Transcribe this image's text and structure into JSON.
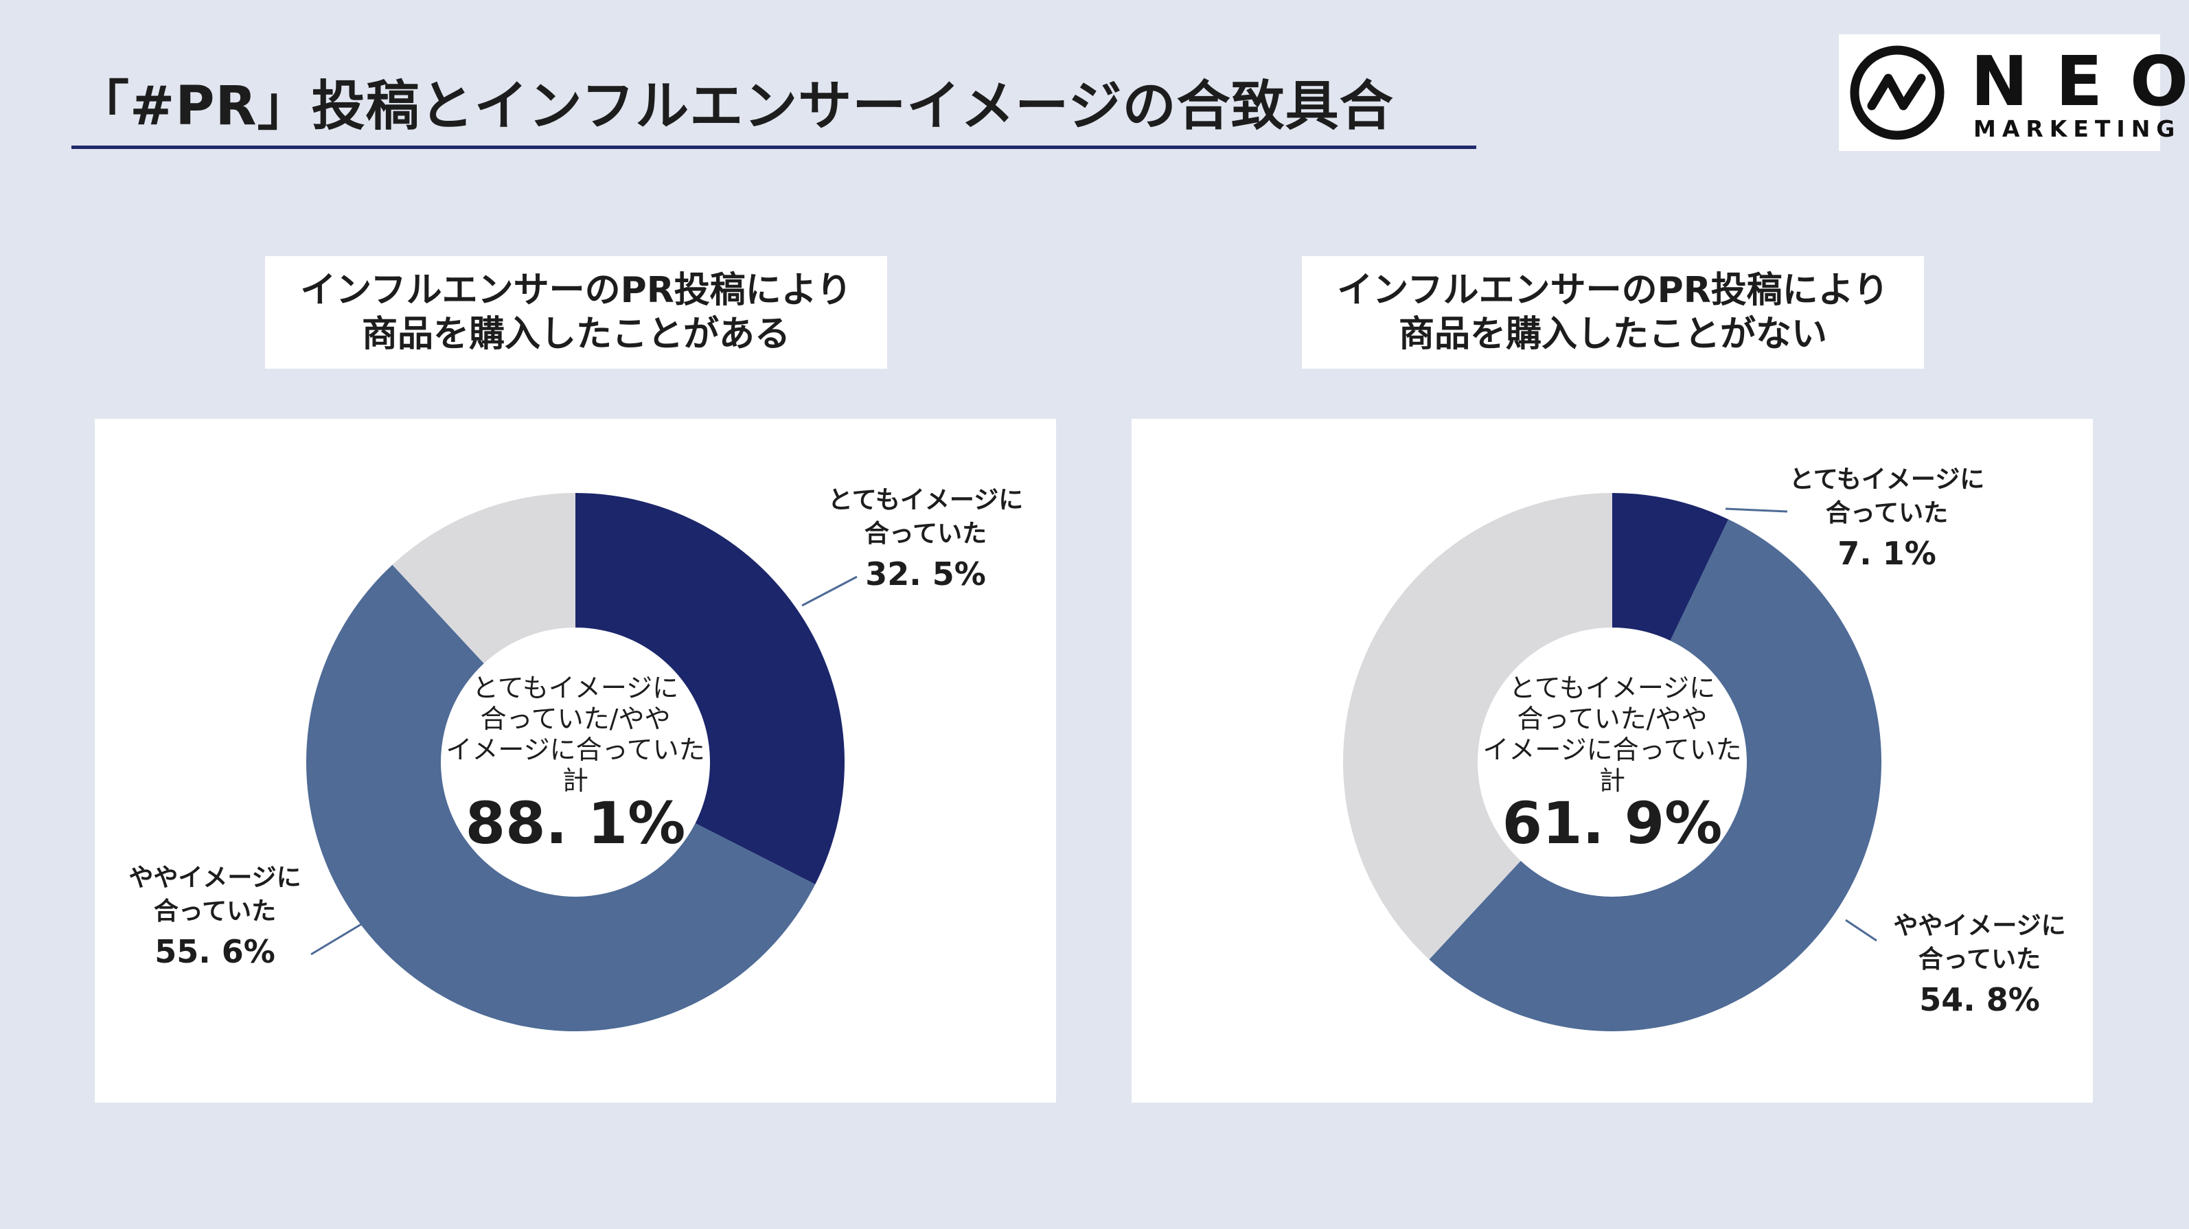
{
  "title": "「#PR」投稿とインフルエンサーイメージの合致具合",
  "logo": {
    "name": "NEO",
    "tagline": "MARKETING",
    "icon": "neo-zigzag-circle-icon"
  },
  "colors": {
    "dark": "#1b266b",
    "mid": "#4f6b96",
    "light": "#dadadd",
    "bg": "#e0e5ef"
  },
  "chart_data": [
    {
      "type": "pie",
      "style": "donut",
      "heading_line1": "インフルエンサーのPR投稿により",
      "heading_line2": "商品を購入したことがある",
      "center_line1": "とてもイメージに",
      "center_line2": "合っていた/やや",
      "center_line3": "イメージに合っていた",
      "center_line4": "計",
      "center_value": "88. 1%",
      "slices": [
        {
          "label_line1": "とてもイメージに",
          "label_line2": "合っていた",
          "value": 32.5,
          "value_text": "32. 5%",
          "color": "#1b266b"
        },
        {
          "label_line1": "ややイメージに",
          "label_line2": "合っていた",
          "value": 55.6,
          "value_text": "55. 6%",
          "color": "#4f6b96"
        },
        {
          "label_line1": "",
          "label_line2": "",
          "value": 11.9,
          "value_text": "",
          "color": "#dadadd"
        }
      ]
    },
    {
      "type": "pie",
      "style": "donut",
      "heading_line1": "インフルエンサーのPR投稿により",
      "heading_line2": "商品を購入したことがない",
      "center_line1": "とてもイメージに",
      "center_line2": "合っていた/やや",
      "center_line3": "イメージに合っていた",
      "center_line4": "計",
      "center_value": "61. 9%",
      "slices": [
        {
          "label_line1": "とてもイメージに",
          "label_line2": "合っていた",
          "value": 7.1,
          "value_text": "7. 1%",
          "color": "#1b266b"
        },
        {
          "label_line1": "ややイメージに",
          "label_line2": "合っていた",
          "value": 54.8,
          "value_text": "54. 8%",
          "color": "#4f6b96"
        },
        {
          "label_line1": "",
          "label_line2": "",
          "value": 38.1,
          "value_text": "",
          "color": "#dadadd"
        }
      ]
    }
  ]
}
